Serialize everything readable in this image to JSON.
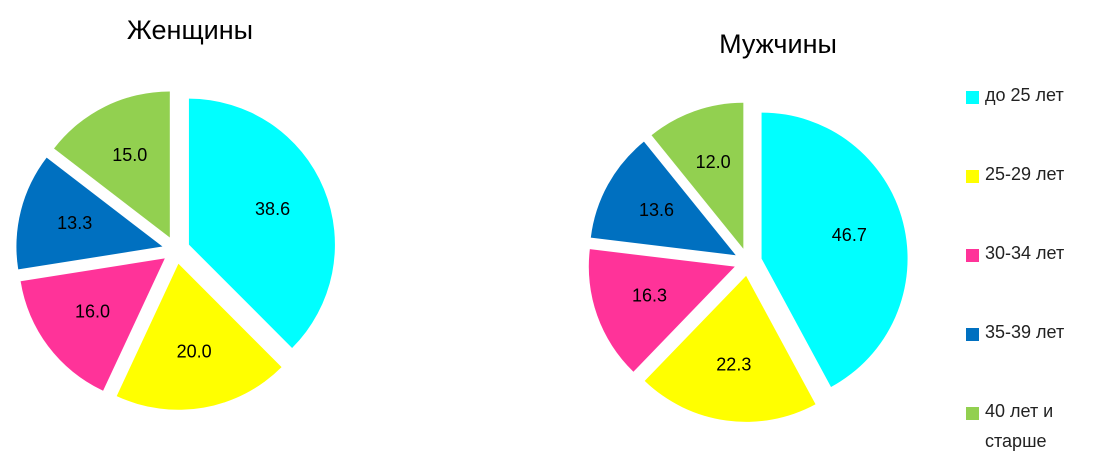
{
  "chart_data": [
    {
      "type": "pie",
      "title": "Женщины",
      "categories": [
        "до 25 лет",
        "25-29 лет",
        "30-34 лет",
        "35-39 лет",
        "40 лет и старше"
      ],
      "values": [
        38.6,
        20.0,
        16.0,
        13.3,
        15.0
      ],
      "value_labels": [
        "38.6",
        "20.0",
        "16.0",
        "13.3",
        "15.0"
      ],
      "colors": [
        "#00ffff",
        "#ffff00",
        "#ff3399",
        "#0070c0",
        "#92d050"
      ]
    },
    {
      "type": "pie",
      "title": "Мужчины",
      "categories": [
        "до 25 лет",
        "25-29 лет",
        "30-34 лет",
        "35-39 лет",
        "40 лет и старше"
      ],
      "values": [
        46.7,
        22.3,
        16.3,
        13.6,
        12.0
      ],
      "value_labels": [
        "46.7",
        "22.3",
        "16.3",
        "13.6",
        "12.0"
      ],
      "colors": [
        "#00ffff",
        "#ffff00",
        "#ff3399",
        "#0070c0",
        "#92d050"
      ]
    }
  ]
}
